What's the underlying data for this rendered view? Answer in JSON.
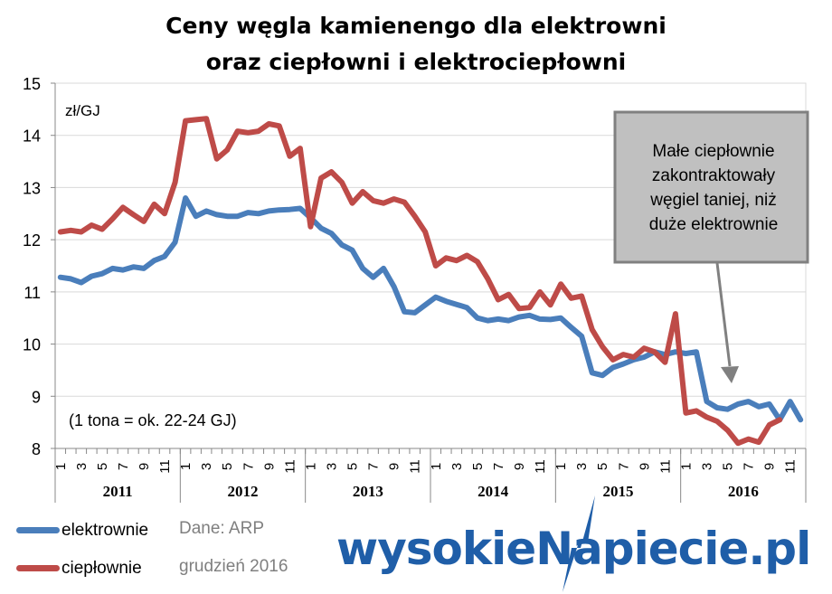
{
  "title_line1": "Ceny węgla kamienengo dla elektrowni",
  "title_line2": "oraz ciepłowni i elektrociepłowni",
  "chart_data": {
    "type": "line",
    "title": "Ceny węgla kamienengo dla elektrowni oraz ciepłowni i elektrociepłowni",
    "ylabel": "zł/GJ",
    "ylim": [
      8,
      15
    ],
    "yticks": [
      "8",
      "9",
      "10",
      "11",
      "12",
      "13",
      "14",
      "15"
    ],
    "years": [
      "2011",
      "2012",
      "2013",
      "2014",
      "2015",
      "2016"
    ],
    "month_labels": [
      "1",
      "",
      "3",
      "",
      "5",
      "",
      "7",
      "",
      "9",
      "",
      "11",
      ""
    ],
    "n_months": 72,
    "annotation_units": "(1 tona = ok. 22-24 GJ)",
    "callout": [
      "Małe ciepłownie",
      "zakontraktowały",
      "węgiel taniej, niż",
      "duże elektrownie"
    ],
    "series": [
      {
        "name": "elektrownie",
        "color": "#4a7ebb",
        "values": [
          11.28,
          11.25,
          11.18,
          11.3,
          11.35,
          11.45,
          11.42,
          11.48,
          11.45,
          11.6,
          11.68,
          11.95,
          12.8,
          12.45,
          12.55,
          12.48,
          12.45,
          12.45,
          12.52,
          12.5,
          12.55,
          12.57,
          12.58,
          12.6,
          12.42,
          12.22,
          12.12,
          11.9,
          11.8,
          11.45,
          11.28,
          11.45,
          11.1,
          10.62,
          10.6,
          10.75,
          10.9,
          10.82,
          10.76,
          10.7,
          10.5,
          10.45,
          10.48,
          10.45,
          10.52,
          10.55,
          10.48,
          10.47,
          10.5,
          10.32,
          10.15,
          9.45,
          9.4,
          9.55,
          9.62,
          9.7,
          9.75,
          9.85,
          9.8,
          9.85,
          9.82,
          9.85,
          8.9,
          8.78,
          8.75,
          8.85,
          8.9,
          8.8,
          8.85,
          8.55,
          8.9,
          8.55
        ]
      },
      {
        "name": "ciepłownie",
        "color": "#be4b48",
        "values": [
          12.15,
          12.18,
          12.15,
          12.28,
          12.2,
          12.4,
          12.62,
          12.48,
          12.35,
          12.68,
          12.5,
          13.1,
          14.28,
          14.3,
          14.32,
          13.55,
          13.72,
          14.08,
          14.05,
          14.08,
          14.22,
          14.18,
          13.6,
          13.75,
          12.25,
          13.18,
          13.3,
          13.1,
          12.7,
          12.92,
          12.75,
          12.7,
          12.78,
          12.72,
          12.45,
          12.15,
          11.5,
          11.65,
          11.6,
          11.7,
          11.58,
          11.25,
          10.85,
          10.95,
          10.68,
          10.7,
          11.0,
          10.75,
          11.15,
          10.88,
          10.92,
          10.28,
          9.95,
          9.7,
          9.8,
          9.75,
          9.92,
          9.85,
          9.65,
          10.58,
          8.68,
          8.72,
          8.6,
          8.52,
          8.35,
          8.1,
          8.18,
          8.12,
          8.45,
          8.55
        ]
      }
    ]
  },
  "legend": {
    "elektrownie_label": "elektrownie",
    "cieplownie_label": "ciepłownie"
  },
  "source": {
    "dane": "Dane: ARP",
    "date": "grudzień 2016"
  },
  "logo_text": "wysokieNapiecie.pl"
}
